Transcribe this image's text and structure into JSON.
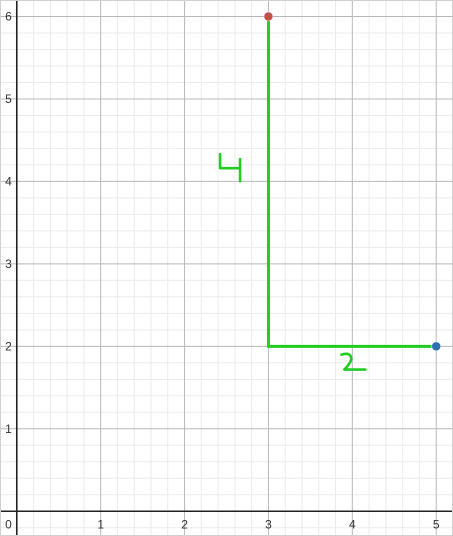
{
  "chart_data": {
    "type": "scatter",
    "title": "",
    "xlabel": "",
    "ylabel": "",
    "xlim": [
      -0.2,
      5.2
    ],
    "ylim": [
      -0.3,
      6.2
    ],
    "grid": true,
    "minor_grid_per_unit": 5,
    "x_ticks": [
      "1",
      "2",
      "3",
      "4",
      "5"
    ],
    "y_ticks": [
      "1",
      "2",
      "3",
      "4",
      "5",
      "6"
    ],
    "origin_label": "0",
    "points": [
      {
        "x": 3,
        "y": 6,
        "color": "#c0504d"
      },
      {
        "x": 5,
        "y": 2,
        "color": "#2d70b3"
      }
    ],
    "segments": [
      {
        "from": [
          3,
          6
        ],
        "to": [
          3,
          2
        ],
        "color": "#22cc22"
      },
      {
        "from": [
          3,
          2
        ],
        "to": [
          5,
          2
        ],
        "color": "#22cc22"
      }
    ],
    "handwritten_annotations": [
      {
        "text": "4",
        "x": 2.65,
        "y": 4.1,
        "color": "#22cc22"
      },
      {
        "text": "2",
        "x": 4.0,
        "y": 1.73,
        "color": "#22cc22"
      }
    ]
  }
}
